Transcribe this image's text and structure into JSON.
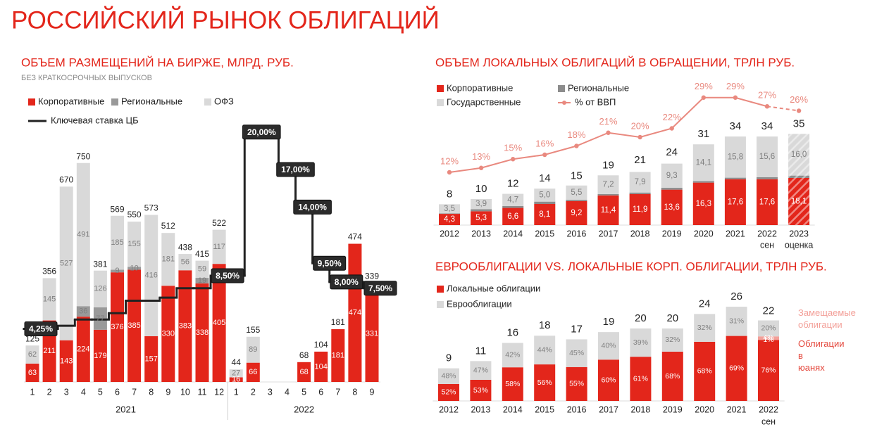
{
  "title": "РОССИЙСКИЙ РЫНОК ОБЛИГАЦИЙ",
  "chart_data": [
    {
      "type": "bar",
      "title": "ОБЪЕМ РАЗМЕЩЕНИЙ НА БИРЖЕ, МЛРД. РУБ.",
      "note": "БЕЗ КРАТКОСРОЧНЫХ ВЫПУСКОВ",
      "categories": [
        "1",
        "2",
        "3",
        "4",
        "5",
        "6",
        "7",
        "8",
        "9",
        "10",
        "11",
        "12",
        "1",
        "2",
        "3",
        "4",
        "5",
        "6",
        "7",
        "8",
        "9"
      ],
      "groups": [
        "2021",
        "2022"
      ],
      "ylim": [
        0,
        900
      ],
      "y2lim": [
        0,
        21
      ],
      "data_labels": true,
      "series": [
        {
          "name": "Корпоративные",
          "color": "#e3261b",
          "values": [
            63,
            211,
            143,
            224,
            179,
            376,
            385,
            157,
            330,
            383,
            338,
            405,
            16,
            66,
            null,
            null,
            68,
            104,
            181,
            474,
            331
          ]
        },
        {
          "name": "Региональные",
          "color": "#999999",
          "values": [
            null,
            null,
            null,
            36,
            77,
            9,
            10,
            null,
            null,
            null,
            19,
            null,
            null,
            null,
            null,
            null,
            null,
            null,
            null,
            null,
            9
          ]
        },
        {
          "name": "ОФЗ",
          "color": "#d9d9d9",
          "values": [
            62,
            145,
            527,
            491,
            126,
            185,
            155,
            416,
            181,
            56,
            59,
            117,
            27,
            89,
            null,
            null,
            null,
            null,
            null,
            null,
            null
          ]
        },
        {
          "name": "Ключевая ставка ЦБ",
          "type": "line",
          "step": true,
          "axis": "y2",
          "color": "#222222",
          "values": [
            4.25,
            4.25,
            4.5,
            5,
            5,
            5.5,
            6.5,
            6.5,
            6.75,
            7.5,
            7.5,
            8.5,
            8.5,
            20,
            20,
            17,
            14,
            9.5,
            8,
            8,
            7.5
          ],
          "value_labels": [
            "4,25%",
            null,
            null,
            null,
            null,
            null,
            null,
            null,
            null,
            null,
            null,
            "8,50%",
            null,
            "20,00%",
            null,
            "17,00%",
            "14,00%",
            "9,50%",
            "8,00%",
            null,
            "7,50%"
          ]
        }
      ],
      "totals": [
        125,
        356,
        670,
        750,
        381,
        569,
        550,
        573,
        512,
        438,
        415,
        522,
        44,
        155,
        null,
        null,
        68,
        104,
        181,
        474,
        339
      ]
    },
    {
      "type": "bar",
      "title": "ОБЪЕМ ЛОКАЛЬНЫХ ОБЛИГАЦИЙ В ОБРАЩЕНИИ, ТРЛН РУБ.",
      "categories": [
        "2012",
        "2013",
        "2014",
        "2015",
        "2016",
        "2017",
        "2018",
        "2019",
        "2020",
        "2021",
        "2022",
        "2023"
      ],
      "category_notes": [
        null,
        null,
        null,
        null,
        null,
        null,
        null,
        null,
        null,
        null,
        "сен",
        "оценка"
      ],
      "estimate_category": "2023",
      "ylim": [
        0,
        54
      ],
      "y2lim": [
        0,
        32
      ],
      "series": [
        {
          "name": "Корпоративные",
          "color": "#e3261b",
          "values": [
            4.3,
            5.3,
            6.6,
            8.1,
            9.2,
            11.4,
            11.9,
            13.6,
            16.3,
            17.6,
            17.6,
            18.1
          ],
          "value_labels": [
            "4,3",
            "5,3",
            "6,6",
            "8,1",
            "9,2",
            "11,4",
            "11,9",
            "13,6",
            "16,3",
            "17,6",
            "17,6",
            "18,1"
          ]
        },
        {
          "name": "Региональные",
          "color": "#8c8c8c",
          "values": [
            0.2,
            0.8,
            0.7,
            0.9,
            0.5,
            0.5,
            0.6,
            0.7,
            0.6,
            0.6,
            0.8,
            0.9
          ]
        },
        {
          "name": "Государственные",
          "color": "#d9d9d9",
          "values": [
            3.5,
            3.9,
            4.7,
            5.0,
            5.5,
            7.2,
            7.9,
            9.3,
            14.1,
            15.8,
            15.6,
            16.0
          ],
          "value_labels": [
            "3,5",
            "3,9",
            "4,7",
            "5,0",
            "5,5",
            "7,2",
            "7,9",
            "9,3",
            "14,1",
            "15,8",
            "15,6",
            "16,0"
          ]
        },
        {
          "name": "% от ВВП",
          "type": "line",
          "markers": true,
          "axis": "y2",
          "color": "#e9897f",
          "values": [
            12,
            13,
            15,
            16,
            18,
            21,
            20,
            22,
            29,
            29,
            27,
            26
          ],
          "value_labels": [
            "12%",
            "13%",
            "15%",
            "16%",
            "18%",
            "21%",
            "20%",
            "22%",
            "29%",
            "29%",
            "27%",
            "26%"
          ]
        }
      ],
      "totals": [
        8,
        10,
        12,
        14,
        15,
        19,
        21,
        24,
        31,
        34,
        34,
        35
      ]
    },
    {
      "type": "bar",
      "title": "ЕВРООБЛИГАЦИИ VS. ЛОКАЛЬНЫЕ КОРП. ОБЛИГАЦИИ, ТРЛН РУБ.",
      "categories": [
        "2012",
        "2013",
        "2014",
        "2015",
        "2016",
        "2017",
        "2018",
        "2019",
        "2020",
        "2021",
        "2022"
      ],
      "category_notes": [
        null,
        null,
        null,
        null,
        null,
        null,
        null,
        null,
        null,
        null,
        "сен"
      ],
      "values_are_shares": true,
      "ylim": [
        0,
        33
      ],
      "series": [
        {
          "name": "Локальные облигации",
          "color": "#e3261b",
          "values": [
            52,
            53,
            58,
            56,
            55,
            60,
            61,
            68,
            68,
            69,
            76
          ],
          "value_labels": [
            "52%",
            "53%",
            "58%",
            "56%",
            "55%",
            "60%",
            "61%",
            "68%",
            "68%",
            "69%",
            "76%"
          ]
        },
        {
          "name": "Облигации в юанях",
          "annotation": true,
          "color": "#e4483d",
          "values": [
            null,
            null,
            null,
            null,
            null,
            null,
            null,
            null,
            null,
            null,
            1
          ],
          "value_labels": [
            null,
            null,
            null,
            null,
            null,
            null,
            null,
            null,
            null,
            null,
            "1%"
          ]
        },
        {
          "name": "Замещаемые облигации",
          "annotation": true,
          "color": "#f3a099",
          "values": [
            null,
            null,
            null,
            null,
            null,
            null,
            null,
            null,
            null,
            null,
            4
          ],
          "value_labels": [
            null,
            null,
            null,
            null,
            null,
            null,
            null,
            null,
            null,
            null,
            "4%"
          ]
        },
        {
          "name": "Еврооблигации",
          "color": "#d9d9d9",
          "values": [
            48,
            47,
            42,
            44,
            45,
            40,
            39,
            32,
            32,
            31,
            20
          ],
          "value_labels": [
            "48%",
            "47%",
            "42%",
            "44%",
            "45%",
            "40%",
            "39%",
            "32%",
            "32%",
            "31%",
            "20%"
          ]
        }
      ],
      "totals": [
        9,
        11,
        16,
        18,
        17,
        19,
        20,
        20,
        24,
        26,
        22
      ]
    }
  ]
}
